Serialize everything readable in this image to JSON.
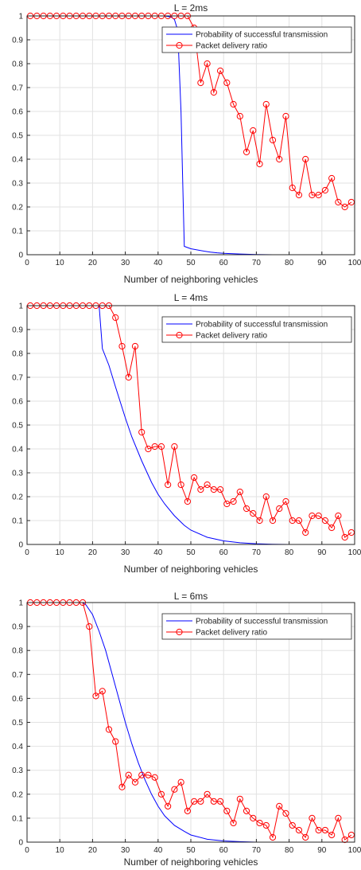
{
  "chart_data": [
    {
      "type": "line",
      "title": "L = 2ms",
      "xlabel": "Number of neighboring vehicles",
      "ylabel": "",
      "xlim": [
        0,
        100
      ],
      "ylim": [
        0,
        1
      ],
      "xticks": [
        0,
        10,
        20,
        30,
        40,
        50,
        60,
        70,
        80,
        90,
        100
      ],
      "yticks": [
        0,
        0.1,
        0.2,
        0.3,
        0.4,
        0.5,
        0.6,
        0.7,
        0.8,
        0.9,
        1
      ],
      "grid": true,
      "legend_position": "top-right",
      "series": [
        {
          "name": "Probability of successful transmission",
          "color": "#0000ff",
          "marker": "none",
          "x": [
            0,
            5,
            10,
            15,
            20,
            25,
            30,
            35,
            40,
            42,
            44,
            45,
            46,
            47,
            48,
            49,
            50,
            52,
            54,
            56,
            58,
            60,
            65,
            70,
            75,
            80,
            90,
            100
          ],
          "y": [
            1,
            1,
            1,
            1,
            1,
            1,
            1,
            1,
            1,
            1,
            0.995,
            0.985,
            0.94,
            0.6,
            0.035,
            0.03,
            0.025,
            0.02,
            0.015,
            0.011,
            0.008,
            0.006,
            0.003,
            0.001,
            0,
            0,
            0,
            0
          ]
        },
        {
          "name": "Packet delivery ratio",
          "color": "#ff0000",
          "marker": "circle",
          "x": [
            1,
            3,
            5,
            7,
            9,
            11,
            13,
            15,
            17,
            19,
            21,
            23,
            25,
            27,
            29,
            31,
            33,
            35,
            37,
            39,
            41,
            43,
            45,
            47,
            49,
            51,
            53,
            55,
            57,
            59,
            61,
            63,
            65,
            67,
            69,
            71,
            73,
            75,
            77,
            79,
            81,
            83,
            85,
            87,
            89,
            91,
            93,
            95,
            97,
            99
          ],
          "y": [
            1,
            1,
            1,
            1,
            1,
            1,
            1,
            1,
            1,
            1,
            1,
            1,
            1,
            1,
            1,
            1,
            1,
            1,
            1,
            1,
            1,
            1,
            1,
            1,
            1,
            0.95,
            0.72,
            0.8,
            0.68,
            0.77,
            0.72,
            0.63,
            0.58,
            0.43,
            0.52,
            0.38,
            0.63,
            0.48,
            0.4,
            0.58,
            0.28,
            0.25,
            0.4,
            0.25,
            0.25,
            0.27,
            0.32,
            0.22,
            0.2,
            0.22
          ]
        }
      ]
    },
    {
      "type": "line",
      "title": "L = 4ms",
      "xlabel": "Number of neighboring vehicles",
      "ylabel": "",
      "xlim": [
        0,
        100
      ],
      "ylim": [
        0,
        1
      ],
      "xticks": [
        0,
        10,
        20,
        30,
        40,
        50,
        60,
        70,
        80,
        90,
        100
      ],
      "yticks": [
        0,
        0.1,
        0.2,
        0.3,
        0.4,
        0.5,
        0.6,
        0.7,
        0.8,
        0.9,
        1
      ],
      "grid": true,
      "legend_position": "top-right",
      "series": [
        {
          "name": "Probability of successful transmission",
          "color": "#0000ff",
          "marker": "none",
          "x": [
            0,
            5,
            10,
            15,
            20,
            21,
            22,
            23,
            25,
            27,
            30,
            32,
            35,
            38,
            40,
            42,
            45,
            48,
            50,
            55,
            60,
            65,
            70,
            75,
            80,
            90,
            100
          ],
          "y": [
            1,
            1,
            1,
            1,
            1,
            1,
            1,
            0.82,
            0.75,
            0.66,
            0.53,
            0.45,
            0.35,
            0.26,
            0.21,
            0.17,
            0.12,
            0.08,
            0.06,
            0.03,
            0.015,
            0.007,
            0.003,
            0.001,
            0,
            0,
            0
          ]
        },
        {
          "name": "Packet delivery ratio",
          "color": "#ff0000",
          "marker": "circle",
          "x": [
            1,
            3,
            5,
            7,
            9,
            11,
            13,
            15,
            17,
            19,
            21,
            23,
            25,
            27,
            29,
            31,
            33,
            35,
            37,
            39,
            41,
            43,
            45,
            47,
            49,
            51,
            53,
            55,
            57,
            59,
            61,
            63,
            65,
            67,
            69,
            71,
            73,
            75,
            77,
            79,
            81,
            83,
            85,
            87,
            89,
            91,
            93,
            95,
            97,
            99
          ],
          "y": [
            1,
            1,
            1,
            1,
            1,
            1,
            1,
            1,
            1,
            1,
            1,
            1,
            1,
            0.95,
            0.83,
            0.7,
            0.83,
            0.47,
            0.4,
            0.41,
            0.41,
            0.25,
            0.41,
            0.25,
            0.18,
            0.28,
            0.23,
            0.25,
            0.23,
            0.23,
            0.17,
            0.18,
            0.22,
            0.15,
            0.13,
            0.1,
            0.2,
            0.1,
            0.15,
            0.18,
            0.1,
            0.1,
            0.05,
            0.12,
            0.12,
            0.1,
            0.07,
            0.12,
            0.03,
            0.05
          ]
        }
      ]
    },
    {
      "type": "line",
      "title": "L = 6ms",
      "xlabel": "Number of neighboring vehicles",
      "ylabel": "",
      "xlim": [
        0,
        100
      ],
      "ylim": [
        0,
        1
      ],
      "xticks": [
        0,
        10,
        20,
        30,
        40,
        50,
        60,
        70,
        80,
        90,
        100
      ],
      "yticks": [
        0,
        0.1,
        0.2,
        0.3,
        0.4,
        0.5,
        0.6,
        0.7,
        0.8,
        0.9,
        1
      ],
      "grid": true,
      "legend_position": "top-right",
      "series": [
        {
          "name": "Probability of successful transmission",
          "color": "#0000ff",
          "marker": "none",
          "x": [
            0,
            5,
            10,
            15,
            17,
            18,
            20,
            22,
            24,
            26,
            28,
            30,
            32,
            34,
            36,
            38,
            40,
            42,
            45,
            48,
            50,
            55,
            60,
            65,
            70,
            80,
            90,
            100
          ],
          "y": [
            1,
            1,
            1,
            1,
            1,
            0.99,
            0.95,
            0.88,
            0.8,
            0.7,
            0.6,
            0.5,
            0.41,
            0.33,
            0.26,
            0.2,
            0.15,
            0.11,
            0.07,
            0.045,
            0.03,
            0.012,
            0.005,
            0.002,
            0,
            0,
            0,
            0
          ]
        },
        {
          "name": "Packet delivery ratio",
          "color": "#ff0000",
          "marker": "circle",
          "x": [
            1,
            3,
            5,
            7,
            9,
            11,
            13,
            15,
            17,
            19,
            21,
            23,
            25,
            27,
            29,
            31,
            33,
            35,
            37,
            39,
            41,
            43,
            45,
            47,
            49,
            51,
            53,
            55,
            57,
            59,
            61,
            63,
            65,
            67,
            69,
            71,
            73,
            75,
            77,
            79,
            81,
            83,
            85,
            87,
            89,
            91,
            93,
            95,
            97,
            99
          ],
          "y": [
            1,
            1,
            1,
            1,
            1,
            1,
            1,
            1,
            1,
            0.9,
            0.61,
            0.63,
            0.47,
            0.42,
            0.23,
            0.28,
            0.25,
            0.28,
            0.28,
            0.27,
            0.2,
            0.15,
            0.22,
            0.25,
            0.13,
            0.17,
            0.17,
            0.2,
            0.17,
            0.17,
            0.13,
            0.08,
            0.18,
            0.13,
            0.1,
            0.08,
            0.07,
            0.02,
            0.15,
            0.12,
            0.07,
            0.05,
            0.02,
            0.1,
            0.05,
            0.05,
            0.03,
            0.1,
            0.01,
            0.03
          ]
        }
      ]
    }
  ]
}
